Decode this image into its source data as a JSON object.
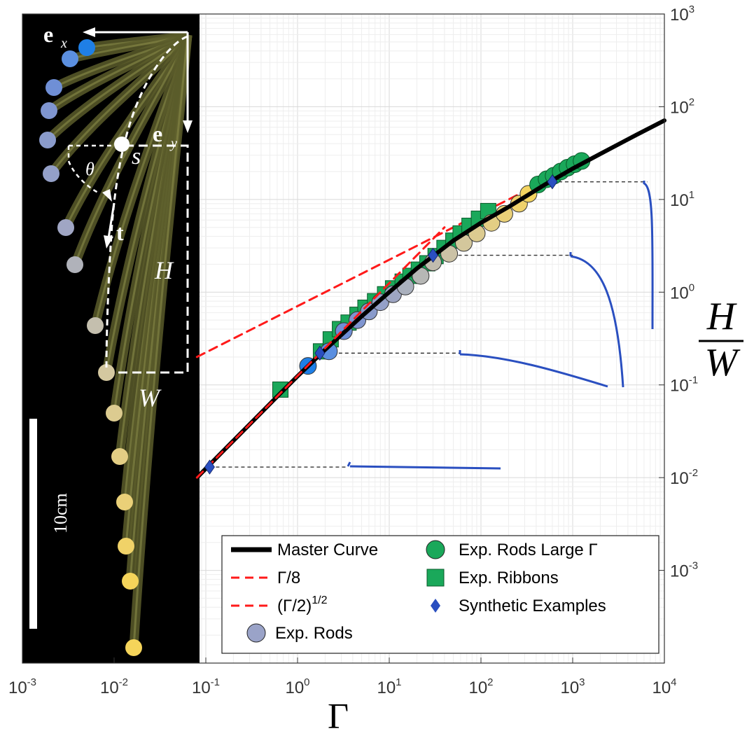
{
  "chart_data": {
    "type": "scatter",
    "xlabel": "Γ",
    "ylabel_num": "H",
    "ylabel_den": "W",
    "xscale": "log",
    "yscale": "log",
    "xlim": [
      0.001,
      10000
    ],
    "ylim": [
      0.0001,
      1000
    ],
    "x_ticks": [
      {
        "base": "10",
        "exp": "-3",
        "value": 0.001
      },
      {
        "base": "10",
        "exp": "-2",
        "value": 0.01
      },
      {
        "base": "10",
        "exp": "-1",
        "value": 0.1
      },
      {
        "base": "10",
        "exp": "0",
        "value": 1
      },
      {
        "base": "10",
        "exp": "1",
        "value": 10
      },
      {
        "base": "10",
        "exp": "2",
        "value": 100
      },
      {
        "base": "10",
        "exp": "3",
        "value": 1000
      },
      {
        "base": "10",
        "exp": "4",
        "value": 10000
      }
    ],
    "y_ticks": [
      {
        "base": "10",
        "exp": "3",
        "value": 1000
      },
      {
        "base": "10",
        "exp": "2",
        "value": 100
      },
      {
        "base": "10",
        "exp": "1",
        "value": 10
      },
      {
        "base": "10",
        "exp": "0",
        "value": 1
      },
      {
        "base": "10",
        "exp": "-1",
        "value": 0.1
      },
      {
        "base": "10",
        "exp": "-2",
        "value": 0.01
      },
      {
        "base": "10",
        "exp": "-3",
        "value": 0.001
      }
    ],
    "grid": true,
    "legend_position": "bottom-right",
    "legend": [
      {
        "label": "Master Curve",
        "marker": "line",
        "color": "#000000"
      },
      {
        "label": "Γ/8",
        "marker": "dashed",
        "color": "#ff1a1a"
      },
      {
        "label": "(Γ/2)",
        "sup": "1/2",
        "marker": "dashed",
        "color": "#ff1a1a"
      },
      {
        "label": "Exp. Rods",
        "marker": "circle",
        "color": "#9aa3c8"
      },
      {
        "label": "Exp. Rods Large Γ",
        "marker": "circle",
        "color": "#1aa85a"
      },
      {
        "label": "Exp. Ribbons",
        "marker": "square",
        "color": "#1aa85a"
      },
      {
        "label": "Synthetic Examples",
        "marker": "diamond",
        "color": "#2a4fc0"
      }
    ],
    "series": [
      {
        "name": "Master Curve",
        "kind": "line",
        "x": [
          0.08,
          0.15,
          0.3,
          0.6,
          1,
          2,
          5,
          10,
          20,
          50,
          100,
          200,
          500,
          1000,
          2000,
          5000,
          10000
        ],
        "y": [
          0.01,
          0.0188,
          0.0375,
          0.075,
          0.124,
          0.24,
          0.55,
          1.0,
          1.8,
          3.6,
          5.6,
          8.3,
          14.5,
          21.5,
          31,
          50,
          71
        ]
      },
      {
        "name": "Γ/8",
        "kind": "dashed",
        "x": [
          0.08,
          40
        ],
        "y": [
          0.01,
          5
        ]
      },
      {
        "name": "(Γ/2)^1/2",
        "kind": "dashed",
        "x": [
          0.08,
          10000
        ],
        "y": [
          0.2,
          70.7
        ]
      },
      {
        "name": "Exp. Rods",
        "kind": "circle",
        "x": [
          1.3,
          2.2,
          3.2,
          4.5,
          6,
          8,
          11,
          15,
          22,
          30,
          45,
          65,
          90,
          130,
          180,
          260,
          330
        ],
        "y": [
          0.16,
          0.23,
          0.38,
          0.5,
          0.62,
          0.78,
          0.95,
          1.15,
          1.5,
          2.1,
          2.6,
          3.4,
          4.3,
          5.6,
          7.0,
          9.0,
          11.5
        ],
        "colors": [
          "#1f7fe6",
          "#5b8fe0",
          "#6f8fd6",
          "#7f95d0",
          "#8a9bcb",
          "#94a0c8",
          "#9ea5c2",
          "#aab0bd",
          "#b6b7b5",
          "#c1bcae",
          "#cbc2a6",
          "#d3c79c",
          "#dccb90",
          "#e3ce84",
          "#ead078",
          "#efd26c",
          "#f3d460"
        ]
      },
      {
        "name": "Exp. Rods Large Γ",
        "kind": "circle",
        "x": [
          420,
          520,
          620,
          740,
          880,
          1050,
          1250
        ],
        "y": [
          14.5,
          16.5,
          18,
          20,
          22,
          24,
          26
        ],
        "color": "#1aa85a"
      },
      {
        "name": "Exp. Ribbons",
        "kind": "square",
        "x": [
          0.65,
          1.8,
          2.3,
          2.9,
          3.6,
          4.5,
          5.5,
          7,
          9,
          11,
          14,
          17,
          21,
          26,
          32,
          40,
          50,
          60,
          75,
          95,
          120
        ],
        "y": [
          0.089,
          0.23,
          0.31,
          0.4,
          0.47,
          0.57,
          0.68,
          0.8,
          0.95,
          1.1,
          1.3,
          1.5,
          1.75,
          2.05,
          2.45,
          3.0,
          3.6,
          4.3,
          5.2,
          6.2,
          7.5
        ],
        "color": "#1aa85a"
      },
      {
        "name": "Synthetic Examples",
        "kind": "diamond",
        "x": [
          0.11,
          1.75,
          30,
          600
        ],
        "y": [
          0.013,
          0.22,
          2.5,
          15.5
        ],
        "color": "#2a4fc0"
      }
    ],
    "connectors": [
      {
        "y": 0.013,
        "x_start": 0.11,
        "x_end": 3.5
      },
      {
        "y": 0.22,
        "x_start": 1.75,
        "x_end": 60
      },
      {
        "y": 2.5,
        "x_start": 30,
        "x_end": 1000
      },
      {
        "y": 15.5,
        "x_start": 600,
        "x_end": 6500
      }
    ]
  },
  "photo_panel": {
    "labels": {
      "ex": "e",
      "ex_sub": "x",
      "ey": "e",
      "ey_sub": "y",
      "s": "s",
      "theta": "θ",
      "t": "t",
      "H": "H",
      "W": "W",
      "scale": "10cm"
    },
    "ball_colors": [
      "#1f7fe6",
      "#5b8fe0",
      "#6f8fd6",
      "#7f95d0",
      "#8a9bcb",
      "#94a0c8",
      "#a0a6c4",
      "#b0b2ba",
      "#c4bfae",
      "#d4c8a0",
      "#dccb90",
      "#e3ce84",
      "#ead078",
      "#f0d268",
      "#f5d45a"
    ]
  }
}
